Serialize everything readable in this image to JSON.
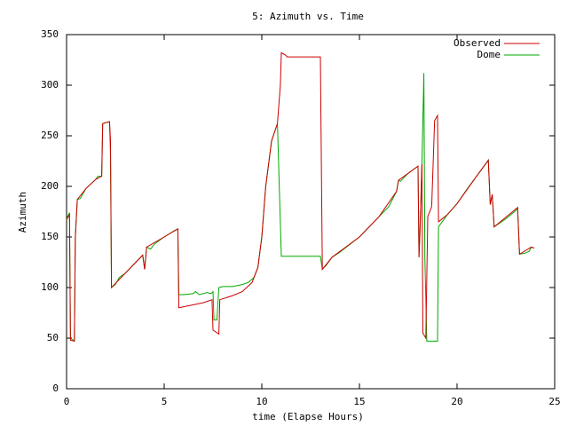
{
  "chart_data": {
    "type": "line",
    "title": "5: Azimuth vs. Time",
    "x_label": "time (Elapse Hours)",
    "y_label": "Azimuth",
    "xlim": [
      0,
      25
    ],
    "xticks": [
      0,
      5,
      10,
      15,
      20,
      25
    ],
    "ylim": [
      0,
      350
    ],
    "yticks": [
      0,
      50,
      100,
      150,
      200,
      250,
      300,
      350
    ],
    "grid": false,
    "legend": "top-right",
    "series": [
      {
        "name": "Observed",
        "color": "#cc0000",
        "x": [
          0,
          0.15,
          0.2,
          0.4,
          0.45,
          0.55,
          1.0,
          1.5,
          1.8,
          1.85,
          2.2,
          2.25,
          2.3,
          3.0,
          3.9,
          4.0,
          4.1,
          5.0,
          5.7,
          5.75,
          6.5,
          7.0,
          7.45,
          7.5,
          7.8,
          7.85,
          8.5,
          9.0,
          9.5,
          9.8,
          10.0,
          10.2,
          10.5,
          10.8,
          10.95,
          11.0,
          11.2,
          11.3,
          13.0,
          13.1,
          13.6,
          15.0,
          16.0,
          16.9,
          17.0,
          18.0,
          18.05,
          18.1,
          18.2,
          18.25,
          18.4,
          18.5,
          18.7,
          18.85,
          19.0,
          19.05,
          19.5,
          20.0,
          21.0,
          21.6,
          21.7,
          21.8,
          21.9,
          23.1,
          23.2,
          23.8,
          23.95
        ],
        "values": [
          167,
          172,
          48,
          47,
          150,
          187,
          198,
          207,
          210,
          262,
          264,
          245,
          100,
          114,
          132,
          118,
          140,
          150,
          158,
          80,
          83,
          85,
          88,
          58,
          54,
          88,
          92,
          96,
          105,
          120,
          150,
          200,
          245,
          262,
          300,
          332,
          330,
          328,
          328,
          118,
          130,
          150,
          170,
          195,
          206,
          220,
          130,
          155,
          222,
          55,
          50,
          170,
          180,
          265,
          270,
          165,
          172,
          183,
          210,
          226,
          182,
          192,
          160,
          179,
          133,
          140,
          139
        ]
      },
      {
        "name": "Dome",
        "color": "#00aa00",
        "x": [
          0,
          0.15,
          0.2,
          0.4,
          0.45,
          0.55,
          0.7,
          1.0,
          1.5,
          1.6,
          1.8,
          1.85,
          2.2,
          2.25,
          2.3,
          2.5,
          2.7,
          3.0,
          3.5,
          3.9,
          4.0,
          4.1,
          4.3,
          4.5,
          5.0,
          5.5,
          5.7,
          5.75,
          6.0,
          6.5,
          6.6,
          6.8,
          7.0,
          7.2,
          7.4,
          7.5,
          7.55,
          7.7,
          7.8,
          8.0,
          8.5,
          9.0,
          9.3,
          9.6,
          9.8,
          10.0,
          10.2,
          10.5,
          10.8,
          11.0,
          12.0,
          13.0,
          13.1,
          13.3,
          13.6,
          14.0,
          15.0,
          16.0,
          16.5,
          16.9,
          17.0,
          17.1,
          17.5,
          18.0,
          18.05,
          18.1,
          18.2,
          18.3,
          18.35,
          18.45,
          19.0,
          19.05,
          19.5,
          20.0,
          20.5,
          21.0,
          21.5,
          21.6,
          21.7,
          21.8,
          21.9,
          22.5,
          23.0,
          23.1,
          23.2,
          23.5,
          23.7,
          23.8,
          23.95
        ],
        "values": [
          168,
          174,
          50,
          47,
          150,
          187,
          188,
          198,
          207,
          210,
          210,
          262,
          264,
          230,
          100,
          103,
          110,
          114,
          124,
          132,
          118,
          140,
          138,
          143,
          150,
          156,
          158,
          93,
          93,
          94,
          96,
          93,
          94,
          95,
          94,
          96,
          68,
          68,
          100,
          101,
          101,
          103,
          105,
          110,
          120,
          150,
          200,
          245,
          262,
          131,
          131,
          131,
          118,
          122,
          130,
          135,
          150,
          170,
          180,
          195,
          206,
          205,
          213,
          220,
          130,
          155,
          222,
          312,
          130,
          47,
          47,
          160,
          172,
          183,
          197,
          210,
          223,
          226,
          182,
          192,
          160,
          168,
          176,
          179,
          133,
          134,
          136,
          140,
          139
        ]
      }
    ]
  }
}
